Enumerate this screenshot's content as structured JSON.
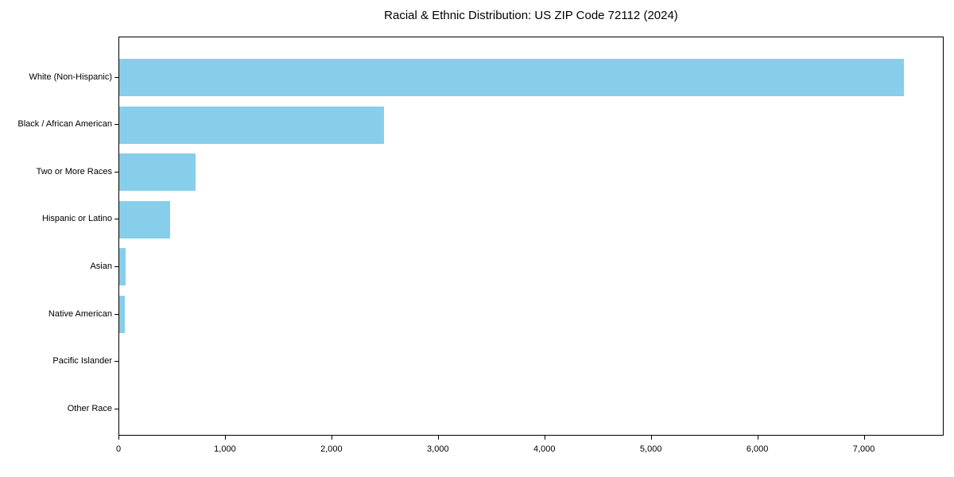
{
  "title": "Racial & Ethnic Distribution: US ZIP Code 72112 (2024)",
  "chart_data": {
    "type": "bar",
    "orientation": "horizontal",
    "title": "Racial & Ethnic Distribution: US ZIP Code 72112 (2024)",
    "categories": [
      "White (Non-Hispanic)",
      "Black / African American",
      "Two or More Races",
      "Hispanic or Latino",
      "Asian",
      "Native American",
      "Pacific Islander",
      "Other Race"
    ],
    "values": [
      7370,
      2490,
      720,
      480,
      60,
      50,
      0,
      0
    ],
    "xlabel": "",
    "ylabel": "",
    "xlim": [
      0,
      7750
    ],
    "x_ticks": [
      0,
      1000,
      2000,
      3000,
      4000,
      5000,
      6000,
      7000
    ],
    "x_tick_labels": [
      "0",
      "1,000",
      "2,000",
      "3,000",
      "4,000",
      "5,000",
      "6,000",
      "7,000"
    ],
    "bar_color": "#87CEEB",
    "text_color": "#000000",
    "border_color": "#000000",
    "grid": false,
    "legend": false
  }
}
